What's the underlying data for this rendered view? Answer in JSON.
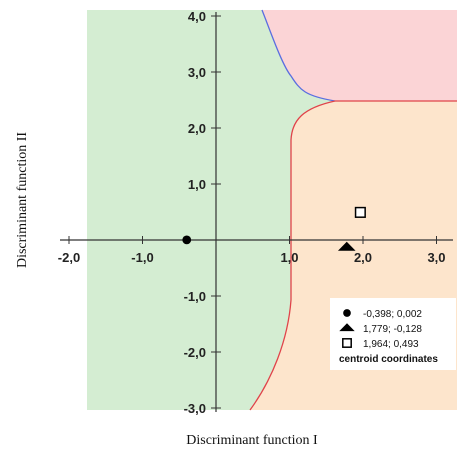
{
  "chart_data": {
    "type": "scatter",
    "xlabel": "Discriminant function I",
    "ylabel": "Discriminant function II",
    "xlim": [
      -2.0,
      3.0
    ],
    "ylim": [
      -3.0,
      4.0
    ],
    "x_ticks": [
      "-2,0",
      "-1,0",
      "1,0",
      "2,0",
      "3,0"
    ],
    "x_tick_values": [
      -2,
      -1,
      1,
      2,
      3
    ],
    "y_ticks": [
      "4,0",
      "3,0",
      "2,0",
      "1,0",
      "-1,0",
      "-2,0",
      "-3,0"
    ],
    "y_tick_values": [
      4,
      3,
      2,
      1,
      -1,
      -2,
      -3
    ],
    "grid": false,
    "legend_position": "bottom-right",
    "legend_title": "centroid coordinates",
    "points": [
      {
        "x": -0.398,
        "y": 0.002,
        "marker": "circle",
        "label": "-0,398; 0,002"
      },
      {
        "x": 1.779,
        "y": -0.128,
        "marker": "triangle",
        "label": "1,779; -0,128"
      },
      {
        "x": 1.964,
        "y": 0.493,
        "marker": "square",
        "label": "1,964; 0,493"
      }
    ],
    "region_colors": {
      "green": "#d4edd2",
      "orange": "#fde5cc",
      "red": "#fbd4d6"
    },
    "boundary_colors": {
      "green_red": "#5a6ee0",
      "green_orange": "#e0434a",
      "red_orange": "#e0434a"
    }
  }
}
